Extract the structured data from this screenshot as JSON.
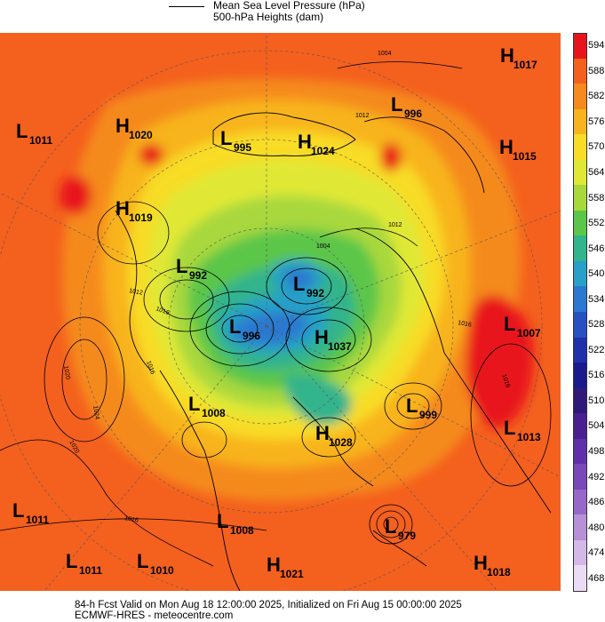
{
  "legend": {
    "line1": "Mean Sea Level Pressure (hPa)",
    "line2": "500-hPa Heights (dam)"
  },
  "colorbar": {
    "labels": [
      "594",
      "588",
      "582",
      "576",
      "570",
      "564",
      "558",
      "552",
      "546",
      "540",
      "534",
      "528",
      "522",
      "516",
      "510",
      "504",
      "498",
      "492",
      "486",
      "480",
      "474",
      "468"
    ],
    "colors": [
      "#e8141c",
      "#f4601e",
      "#f58a1e",
      "#f8b41e",
      "#f8dc28",
      "#e0e835",
      "#a8d83c",
      "#5cc64a",
      "#32b48c",
      "#28a0c8",
      "#2c78d0",
      "#2850c0",
      "#2030a8",
      "#1a1a8c",
      "#301a78",
      "#4a2090",
      "#6030a8",
      "#7a48b8",
      "#9868c8",
      "#b890d8",
      "#d4b8e8",
      "#eadcf4"
    ]
  },
  "systems": [
    {
      "type": "H",
      "value": "1017"
    },
    {
      "type": "L",
      "value": "996"
    },
    {
      "type": "L",
      "value": "1011"
    },
    {
      "type": "H",
      "value": "1020"
    },
    {
      "type": "L",
      "value": "995"
    },
    {
      "type": "H",
      "value": "1024"
    },
    {
      "type": "H",
      "value": "1015"
    },
    {
      "type": "H",
      "value": "1019"
    },
    {
      "type": "L",
      "value": "992"
    },
    {
      "type": "L",
      "value": "992"
    },
    {
      "type": "L",
      "value": "996"
    },
    {
      "type": "H",
      "value": "1037"
    },
    {
      "type": "L",
      "value": "1007"
    },
    {
      "type": "L",
      "value": "1008"
    },
    {
      "type": "L",
      "value": "999"
    },
    {
      "type": "H",
      "value": "1028"
    },
    {
      "type": "L",
      "value": "1013"
    },
    {
      "type": "L",
      "value": "1011"
    },
    {
      "type": "L",
      "value": "1008"
    },
    {
      "type": "L",
      "value": "979"
    },
    {
      "type": "L",
      "value": "1011"
    },
    {
      "type": "L",
      "value": "1010"
    },
    {
      "type": "H",
      "value": "1021"
    },
    {
      "type": "H",
      "value": "1018"
    }
  ],
  "isobar_labels": [
    "1004",
    "1012",
    "1004",
    "1012",
    "1016",
    "1012",
    "1016",
    "1020",
    "1024",
    "1016",
    "1020",
    "1016",
    "1016"
  ],
  "footer": {
    "line1": "84-h Fcst Valid on Mon Aug 18 12:00:00 2025, Initialized on Fri Aug 15 00:00:00 2025",
    "line2": "ECMWF-HRES  - meteocentre.com"
  }
}
